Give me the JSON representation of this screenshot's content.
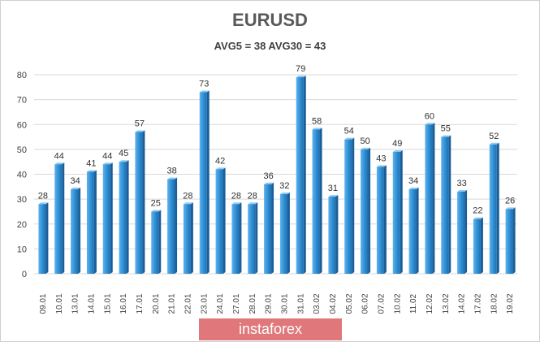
{
  "chart_data": {
    "type": "bar",
    "title": "EURUSD",
    "subtitle": "AVG5 = 38 AVG30 = 43",
    "xlabel": "",
    "ylabel": "",
    "ylim": [
      0,
      80
    ],
    "yticks": [
      0,
      10,
      20,
      30,
      40,
      50,
      60,
      70,
      80
    ],
    "grid": true,
    "legend": "none",
    "bar_color": "#2e8fd4",
    "categories": [
      "09.01",
      "10.01",
      "13.01",
      "14.01",
      "15.01",
      "16.01",
      "17.01",
      "20.01",
      "21.01",
      "22.01",
      "23.01",
      "24.01",
      "27.01",
      "28.01",
      "29.01",
      "30.01",
      "31.01",
      "03.02",
      "04.02",
      "05.02",
      "06.02",
      "07.02",
      "10.02",
      "11.02",
      "12.02",
      "13.02",
      "14.02",
      "17.02",
      "18.02",
      "19.02"
    ],
    "values": [
      28,
      44,
      34,
      41,
      44,
      45,
      57,
      25,
      38,
      28,
      73,
      42,
      28,
      28,
      36,
      32,
      79,
      58,
      31,
      54,
      50,
      43,
      49,
      34,
      60,
      55,
      33,
      22,
      52,
      26
    ]
  },
  "brand": {
    "text": "instaforex",
    "color": "#e0787b"
  }
}
